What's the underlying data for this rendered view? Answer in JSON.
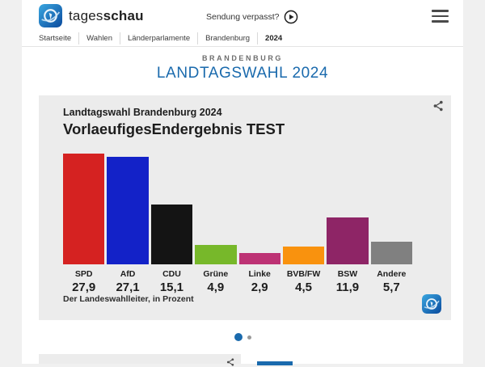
{
  "header": {
    "brand_regular": "tages",
    "brand_bold": "schau",
    "watch_label": "Sendung verpasst?"
  },
  "breadcrumb": {
    "items": [
      "Startseite",
      "Wahlen",
      "Länderparlamente",
      "Brandenburg",
      "2024"
    ],
    "current": "2024"
  },
  "page": {
    "kicker": "BRANDENBURG",
    "title": "LANDTAGSWAHL 2024"
  },
  "chart_data": {
    "type": "bar",
    "title": "Landtagswahl Brandenburg 2024",
    "subtitle": "VorlaeufigesEndergebnis TEST",
    "source": "Der Landeswahlleiter, in Prozent",
    "unit": "percent",
    "categories": [
      "SPD",
      "AfD",
      "CDU",
      "Grüne",
      "Linke",
      "BVB/FW",
      "BSW",
      "Andere"
    ],
    "values": [
      27.9,
      27.1,
      15.1,
      4.9,
      2.9,
      4.5,
      11.9,
      5.7
    ],
    "value_labels": [
      "27,9",
      "27,1",
      "15,1",
      "4,9",
      "2,9",
      "4,5",
      "11,9",
      "5,7"
    ],
    "colors": [
      "#d52221",
      "#1322c8",
      "#141414",
      "#77b82a",
      "#bd3274",
      "#f9920e",
      "#8e2566",
      "#808080"
    ],
    "ylim": [
      0,
      28.2
    ],
    "grid": false,
    "legend": "none",
    "value_label_position": "below-category"
  },
  "carousel": {
    "dot_count": 2,
    "active_index": 0
  },
  "icons": {
    "logo": "tagesschau-globe-logo",
    "play": "play-icon",
    "menu": "hamburger-icon",
    "share": "share-icon"
  },
  "colors": {
    "accent_blue": "#1a6aad",
    "card_background": "#ececec",
    "page_background": "#f0f0f0",
    "content_background": "#ffffff",
    "text_dark": "#1d1d1d"
  }
}
